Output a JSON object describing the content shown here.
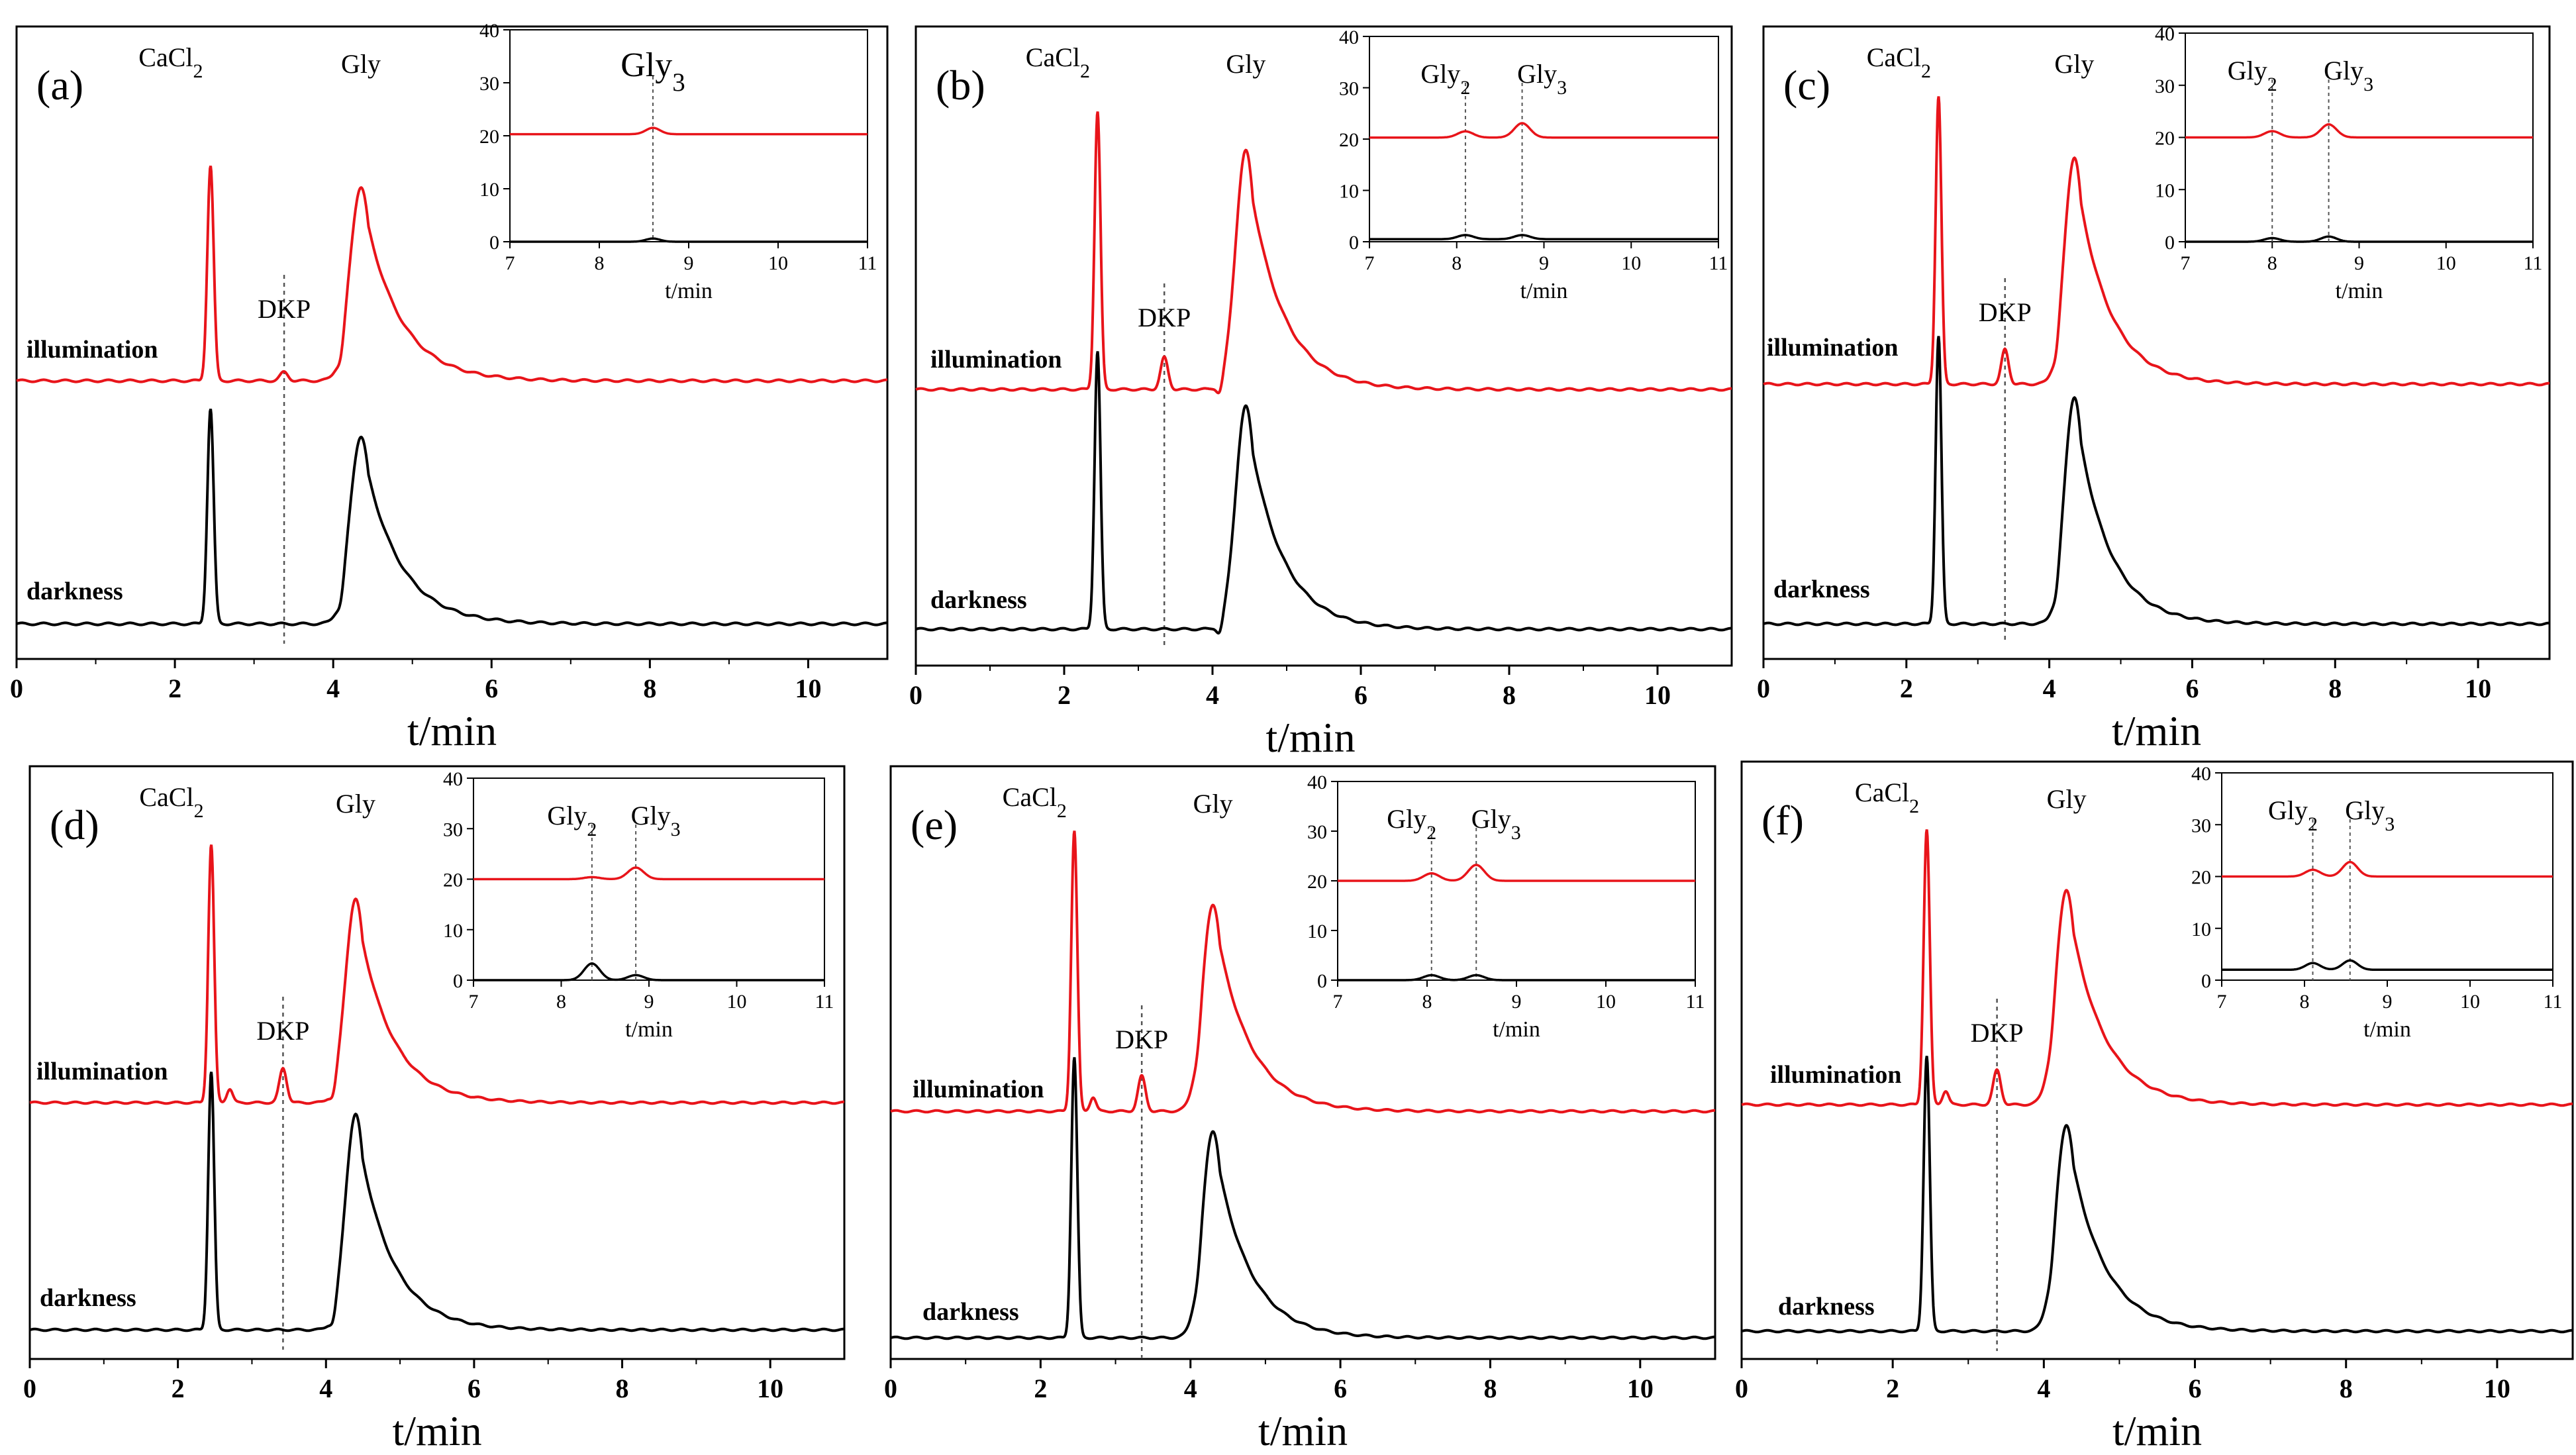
{
  "figure": {
    "x_unit_label": "t/min",
    "trace_labels": {
      "illumination": "illumination",
      "darkness": "darkness"
    },
    "colors": {
      "illumination": "#e8141a",
      "darkness": "#000000",
      "guide": "#555555"
    }
  },
  "chart_data": [
    {
      "panel": "(a)",
      "type": "line",
      "xlabel": "t/min",
      "xlim": [
        0,
        11
      ],
      "xticks": [
        0,
        2,
        4,
        6,
        8,
        10
      ],
      "peak_labels": [
        {
          "label": "CaCl",
          "sub": "2",
          "x": 2.45
        },
        {
          "label": "DKP",
          "x": 3.38
        },
        {
          "label": "Gly",
          "x": 4.35
        }
      ],
      "guide_x": [
        3.38
      ],
      "series": [
        {
          "name": "illumination",
          "baseline": 0,
          "peaks": [
            {
              "x": 2.45,
              "h": 100,
              "w": 0.04
            },
            {
              "x": 3.38,
              "h": 4,
              "w": 0.05
            },
            {
              "x": 4.35,
              "h": 90,
              "w": 0.14,
              "tail": 0.45
            }
          ]
        },
        {
          "name": "darkness",
          "baseline": 0,
          "peaks": [
            {
              "x": 2.45,
              "h": 100,
              "w": 0.04
            },
            {
              "x": 4.35,
              "h": 87,
              "w": 0.14,
              "tail": 0.45
            }
          ]
        }
      ],
      "inset": {
        "xlabel": "t/min",
        "xlim": [
          7,
          11
        ],
        "ylim": [
          0,
          40
        ],
        "xticks": [
          7,
          8,
          9,
          10,
          11
        ],
        "yticks": [
          0,
          10,
          20,
          30,
          40
        ],
        "labels": [
          {
            "label": "Gly",
            "sub": "3",
            "x": 8.6
          }
        ],
        "guide_x": [
          8.6
        ],
        "series": [
          {
            "name": "illumination",
            "baseline": 20.3,
            "peaks": [
              {
                "x": 8.6,
                "h": 1.2,
                "w": 0.08
              }
            ]
          },
          {
            "name": "darkness",
            "baseline": 0,
            "peaks": [
              {
                "x": 8.6,
                "h": 0.6,
                "w": 0.08
              }
            ]
          }
        ]
      }
    },
    {
      "panel": "(b)",
      "type": "line",
      "xlabel": "t/min",
      "xlim": [
        0,
        11
      ],
      "xticks": [
        0,
        2,
        4,
        6,
        8,
        10
      ],
      "peak_labels": [
        {
          "label": "CaCl",
          "sub": "2",
          "x": 2.45
        },
        {
          "label": "DKP",
          "x": 3.35
        },
        {
          "label": "Gly",
          "x": 4.45
        }
      ],
      "guide_x": [
        3.35
      ],
      "series": [
        {
          "name": "illumination",
          "baseline": 0,
          "peaks": [
            {
              "x": 2.45,
              "h": 140,
              "w": 0.04
            },
            {
              "x": 3.35,
              "h": 16,
              "w": 0.05
            },
            {
              "x": 4.45,
              "h": 120,
              "w": 0.14,
              "tail": 0.45
            }
          ]
        },
        {
          "name": "darkness",
          "baseline": 0,
          "peaks": [
            {
              "x": 2.45,
              "h": 140,
              "w": 0.04
            },
            {
              "x": 4.45,
              "h": 112,
              "w": 0.14,
              "tail": 0.45
            }
          ]
        }
      ],
      "inset": {
        "xlabel": "t/min",
        "xlim": [
          7,
          11
        ],
        "ylim": [
          0,
          40
        ],
        "xticks": [
          7,
          8,
          9,
          10,
          11
        ],
        "yticks": [
          0,
          10,
          20,
          30,
          40
        ],
        "labels": [
          {
            "label": "Gly",
            "sub": "2",
            "x": 8.1
          },
          {
            "label": "Gly",
            "sub": "3",
            "x": 8.75
          }
        ],
        "guide_x": [
          8.1,
          8.75
        ],
        "series": [
          {
            "name": "illumination",
            "baseline": 20.3,
            "peaks": [
              {
                "x": 8.1,
                "h": 1.2,
                "w": 0.09
              },
              {
                "x": 8.75,
                "h": 2.8,
                "w": 0.09
              }
            ]
          },
          {
            "name": "darkness",
            "baseline": 0.5,
            "peaks": [
              {
                "x": 8.1,
                "h": 0.8,
                "w": 0.09
              },
              {
                "x": 8.75,
                "h": 0.8,
                "w": 0.09
              }
            ]
          }
        ]
      }
    },
    {
      "panel": "(c)",
      "type": "line",
      "xlabel": "t/min",
      "xlim": [
        0,
        11
      ],
      "xticks": [
        0,
        2,
        4,
        6,
        8,
        10
      ],
      "peak_labels": [
        {
          "label": "CaCl",
          "sub": "2",
          "x": 2.45
        },
        {
          "label": "DKP",
          "x": 3.38
        },
        {
          "label": "Gly",
          "x": 4.35
        }
      ],
      "guide_x": [
        3.38
      ],
      "series": [
        {
          "name": "illumination",
          "baseline": 0,
          "peaks": [
            {
              "x": 2.45,
              "h": 150,
              "w": 0.04
            },
            {
              "x": 3.38,
              "h": 18,
              "w": 0.05
            },
            {
              "x": 4.35,
              "h": 118,
              "w": 0.14,
              "tail": 0.45
            }
          ]
        },
        {
          "name": "darkness",
          "baseline": 0,
          "peaks": [
            {
              "x": 2.45,
              "h": 150,
              "w": 0.04
            },
            {
              "x": 4.35,
              "h": 118,
              "w": 0.14,
              "tail": 0.45
            }
          ]
        }
      ],
      "inset": {
        "xlabel": "t/min",
        "xlim": [
          7,
          11
        ],
        "ylim": [
          0,
          40
        ],
        "xticks": [
          7,
          8,
          9,
          10,
          11
        ],
        "yticks": [
          0,
          10,
          20,
          30,
          40
        ],
        "labels": [
          {
            "label": "Gly",
            "sub": "2",
            "x": 8.0
          },
          {
            "label": "Gly",
            "sub": "3",
            "x": 8.65
          }
        ],
        "guide_x": [
          8.0,
          8.65
        ],
        "series": [
          {
            "name": "illumination",
            "baseline": 20,
            "peaks": [
              {
                "x": 8.0,
                "h": 1.2,
                "w": 0.09
              },
              {
                "x": 8.65,
                "h": 2.5,
                "w": 0.09
              }
            ]
          },
          {
            "name": "darkness",
            "baseline": 0,
            "peaks": [
              {
                "x": 8.0,
                "h": 0.7,
                "w": 0.09
              },
              {
                "x": 8.65,
                "h": 1.0,
                "w": 0.09
              }
            ]
          }
        ]
      }
    },
    {
      "panel": "(d)",
      "type": "line",
      "xlabel": "t/min",
      "xlim": [
        0,
        11
      ],
      "xticks": [
        0,
        2,
        4,
        6,
        8,
        10
      ],
      "peak_labels": [
        {
          "label": "CaCl",
          "sub": "2",
          "x": 2.45
        },
        {
          "label": "DKP",
          "x": 3.42
        },
        {
          "label": "Gly",
          "x": 4.4
        }
      ],
      "guide_x": [
        3.42
      ],
      "series": [
        {
          "name": "illumination",
          "baseline": 0,
          "peaks": [
            {
              "x": 2.45,
              "h": 150,
              "w": 0.04
            },
            {
              "x": 2.7,
              "h": 8,
              "w": 0.04
            },
            {
              "x": 3.42,
              "h": 20,
              "w": 0.05
            },
            {
              "x": 4.4,
              "h": 118,
              "w": 0.14,
              "tail": 0.45
            }
          ]
        },
        {
          "name": "darkness",
          "baseline": 0,
          "peaks": [
            {
              "x": 2.45,
              "h": 150,
              "w": 0.04
            },
            {
              "x": 4.4,
              "h": 125,
              "w": 0.14,
              "tail": 0.45
            }
          ]
        }
      ],
      "inset": {
        "xlabel": "t/min",
        "xlim": [
          7,
          11
        ],
        "ylim": [
          0,
          40
        ],
        "xticks": [
          7,
          8,
          9,
          10,
          11
        ],
        "yticks": [
          0,
          10,
          20,
          30,
          40
        ],
        "labels": [
          {
            "label": "Gly",
            "sub": "2",
            "x": 8.35
          },
          {
            "label": "Gly",
            "sub": "3",
            "x": 8.85
          }
        ],
        "guide_x": [
          8.35,
          8.85
        ],
        "series": [
          {
            "name": "illumination",
            "baseline": 20,
            "peaks": [
              {
                "x": 8.35,
                "h": 0.4,
                "w": 0.09
              },
              {
                "x": 8.85,
                "h": 2.3,
                "w": 0.09
              }
            ]
          },
          {
            "name": "darkness",
            "baseline": 0,
            "peaks": [
              {
                "x": 8.35,
                "h": 3.3,
                "w": 0.09
              },
              {
                "x": 8.85,
                "h": 1.0,
                "w": 0.09
              }
            ]
          }
        ]
      }
    },
    {
      "panel": "(e)",
      "type": "line",
      "xlabel": "t/min",
      "xlim": [
        0,
        11
      ],
      "xticks": [
        0,
        2,
        4,
        6,
        8,
        10
      ],
      "peak_labels": [
        {
          "label": "CaCl",
          "sub": "2",
          "x": 2.45
        },
        {
          "label": "DKP",
          "x": 3.35
        },
        {
          "label": "Gly",
          "x": 4.3
        }
      ],
      "guide_x": [
        3.35
      ],
      "series": [
        {
          "name": "illumination",
          "baseline": 0,
          "peaks": [
            {
              "x": 2.45,
              "h": 160,
              "w": 0.04
            },
            {
              "x": 2.7,
              "h": 8,
              "w": 0.04
            },
            {
              "x": 3.35,
              "h": 20,
              "w": 0.05
            },
            {
              "x": 4.3,
              "h": 118,
              "w": 0.14,
              "tail": 0.45
            }
          ]
        },
        {
          "name": "darkness",
          "baseline": 0,
          "peaks": [
            {
              "x": 2.45,
              "h": 160,
              "w": 0.04
            },
            {
              "x": 4.3,
              "h": 118,
              "w": 0.14,
              "tail": 0.45
            }
          ]
        }
      ],
      "inset": {
        "xlabel": "t/min",
        "xlim": [
          7,
          11
        ],
        "ylim": [
          0,
          40
        ],
        "xticks": [
          7,
          8,
          9,
          10,
          11
        ],
        "yticks": [
          0,
          10,
          20,
          30,
          40
        ],
        "labels": [
          {
            "label": "Gly",
            "sub": "2",
            "x": 8.05
          },
          {
            "label": "Gly",
            "sub": "3",
            "x": 8.55
          }
        ],
        "guide_x": [
          8.05,
          8.55
        ],
        "series": [
          {
            "name": "illumination",
            "baseline": 20,
            "peaks": [
              {
                "x": 8.05,
                "h": 1.5,
                "w": 0.09
              },
              {
                "x": 8.55,
                "h": 3.2,
                "w": 0.09
              }
            ]
          },
          {
            "name": "darkness",
            "baseline": 0,
            "peaks": [
              {
                "x": 8.05,
                "h": 1.0,
                "w": 0.09
              },
              {
                "x": 8.55,
                "h": 1.0,
                "w": 0.09
              }
            ]
          }
        ]
      }
    },
    {
      "panel": "(f)",
      "type": "line",
      "xlabel": "t/min",
      "xlim": [
        0,
        11
      ],
      "xticks": [
        0,
        2,
        4,
        6,
        8,
        10
      ],
      "peak_labels": [
        {
          "label": "CaCl",
          "sub": "2",
          "x": 2.45
        },
        {
          "label": "DKP",
          "x": 3.38
        },
        {
          "label": "Gly",
          "x": 4.3
        }
      ],
      "guide_x": [
        3.38
      ],
      "series": [
        {
          "name": "illumination",
          "baseline": 0,
          "peaks": [
            {
              "x": 2.45,
              "h": 160,
              "w": 0.04
            },
            {
              "x": 2.7,
              "h": 8,
              "w": 0.04
            },
            {
              "x": 3.38,
              "h": 20,
              "w": 0.05
            },
            {
              "x": 4.3,
              "h": 125,
              "w": 0.14,
              "tail": 0.45
            }
          ]
        },
        {
          "name": "darkness",
          "baseline": 0,
          "peaks": [
            {
              "x": 2.45,
              "h": 160,
              "w": 0.04
            },
            {
              "x": 4.3,
              "h": 120,
              "w": 0.14,
              "tail": 0.45
            }
          ]
        }
      ],
      "inset": {
        "xlabel": "t/min",
        "xlim": [
          7,
          11
        ],
        "ylim": [
          0,
          40
        ],
        "xticks": [
          7,
          8,
          9,
          10,
          11
        ],
        "yticks": [
          0,
          10,
          20,
          30,
          40
        ],
        "labels": [
          {
            "label": "Gly",
            "sub": "2",
            "x": 8.1
          },
          {
            "label": "Gly",
            "sub": "3",
            "x": 8.55
          }
        ],
        "guide_x": [
          8.1,
          8.55
        ],
        "series": [
          {
            "name": "illumination",
            "baseline": 20,
            "peaks": [
              {
                "x": 8.1,
                "h": 1.3,
                "w": 0.09
              },
              {
                "x": 8.55,
                "h": 2.8,
                "w": 0.09
              }
            ]
          },
          {
            "name": "darkness",
            "baseline": 2,
            "peaks": [
              {
                "x": 8.1,
                "h": 1.3,
                "w": 0.09
              },
              {
                "x": 8.55,
                "h": 1.8,
                "w": 0.09
              }
            ]
          }
        ]
      }
    }
  ]
}
